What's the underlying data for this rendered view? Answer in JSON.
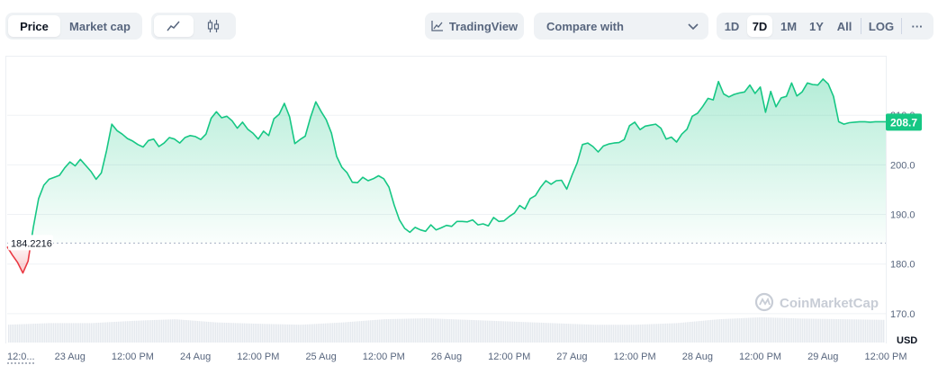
{
  "toolbar": {
    "view_tabs": [
      {
        "label": "Price",
        "active": true
      },
      {
        "label": "Market cap",
        "active": false
      }
    ],
    "chart_type_icons": [
      "line-chart-icon",
      "candlestick-icon"
    ],
    "tradingview_label": "TradingView",
    "compare_placeholder": "Compare with",
    "range_tabs": [
      {
        "label": "1D",
        "active": false
      },
      {
        "label": "7D",
        "active": true
      },
      {
        "label": "1M",
        "active": false
      },
      {
        "label": "1Y",
        "active": false
      },
      {
        "label": "All",
        "active": false
      },
      {
        "label": "LOG",
        "active": false
      }
    ],
    "more_label": "···"
  },
  "colors": {
    "up": "#16c784",
    "down": "#ea3943",
    "grid": "#eff2f5",
    "axis_text": "#58667e",
    "watermark": "#c8cdd6"
  },
  "watermark": "CoinMarketCap",
  "chart_data": {
    "type": "area",
    "currency": "USD",
    "open_price_label": "184.2216",
    "open_price": 184.2216,
    "last_price_label": "208.7",
    "last_price": 208.7,
    "ylim": [
      164,
      222
    ],
    "yticks": [
      {
        "value": 210,
        "label": "210.0"
      },
      {
        "value": 200,
        "label": "200.0"
      },
      {
        "value": 190,
        "label": "190.0"
      },
      {
        "value": 180,
        "label": "180.0"
      },
      {
        "value": 170,
        "label": "170.0"
      }
    ],
    "xlim": [
      0,
      168
    ],
    "xticks": [
      {
        "t": 0,
        "label": "12:0..."
      },
      {
        "t": 12,
        "label": "23 Aug"
      },
      {
        "t": 24,
        "label": "12:00 PM"
      },
      {
        "t": 36,
        "label": "24 Aug"
      },
      {
        "t": 48,
        "label": "12:00 PM"
      },
      {
        "t": 60,
        "label": "25 Aug"
      },
      {
        "t": 72,
        "label": "12:00 PM"
      },
      {
        "t": 84,
        "label": "26 Aug"
      },
      {
        "t": 96,
        "label": "12:00 PM"
      },
      {
        "t": 108,
        "label": "27 Aug"
      },
      {
        "t": 120,
        "label": "12:00 PM"
      },
      {
        "t": 132,
        "label": "28 Aug"
      },
      {
        "t": 144,
        "label": "12:00 PM"
      },
      {
        "t": 156,
        "label": "29 Aug"
      },
      {
        "t": 168,
        "label": "12:00 PM"
      }
    ],
    "series": [
      {
        "t": [
          0,
          1,
          2,
          3,
          4,
          5,
          6,
          7,
          8,
          9,
          10,
          11,
          12,
          13,
          14,
          15,
          16,
          17,
          18,
          19,
          20,
          21,
          22,
          23,
          24,
          25,
          26,
          27,
          28,
          29,
          30,
          31,
          32,
          33,
          34,
          35,
          36,
          37,
          38,
          39,
          40,
          41,
          42,
          43,
          44,
          45,
          46,
          47,
          48,
          49,
          50,
          51,
          52,
          53,
          54,
          55,
          56,
          57,
          58,
          59,
          60,
          61,
          62,
          63,
          64,
          65,
          66,
          67,
          68,
          69,
          70,
          71,
          72,
          73,
          74,
          75,
          76,
          77,
          78,
          79,
          80,
          81,
          82,
          83,
          84,
          85,
          86,
          87,
          88,
          89,
          90,
          91,
          92,
          93,
          94,
          95,
          96,
          97,
          98,
          99,
          100,
          101,
          102,
          103,
          104,
          105,
          106,
          107,
          108,
          109,
          110,
          111,
          112,
          113,
          114,
          115,
          116,
          117,
          118,
          119,
          120,
          121,
          122,
          123,
          124,
          125,
          126,
          127,
          128,
          129,
          130,
          131,
          132,
          133,
          134,
          135,
          136,
          137,
          138,
          139,
          140,
          141,
          142,
          143,
          144,
          145,
          146,
          147,
          148,
          149,
          150,
          151,
          152,
          153,
          154,
          155,
          156,
          157,
          158,
          159,
          160,
          161,
          162,
          163,
          164,
          165,
          166,
          167,
          168
        ],
        "price": [
          183.5,
          181.8,
          180.3,
          178.2,
          180.6,
          187.4,
          193.2,
          195.9,
          197.1,
          197.5,
          197.9,
          199.4,
          200.6,
          199.8,
          201.1,
          199.9,
          198.7,
          197.1,
          198.4,
          202.9,
          208.2,
          206.9,
          206.2,
          205.3,
          204.8,
          204.1,
          203.6,
          204.9,
          205.2,
          203.7,
          204.4,
          205.5,
          205.2,
          204.4,
          205.5,
          205.9,
          205.7,
          205.1,
          206.2,
          209.4,
          210.7,
          209.5,
          209.8,
          208.9,
          207.4,
          208.6,
          207.2,
          206.4,
          205.2,
          206.8,
          205.9,
          209.3,
          210.2,
          212.4,
          209.7,
          204.3,
          205.1,
          205.8,
          209.6,
          212.7,
          210.8,
          209.1,
          206.4,
          201.7,
          199.5,
          198.4,
          196.5,
          196.4,
          197.5,
          196.8,
          197.2,
          197.8,
          197.2,
          195.5,
          191.9,
          188.9,
          187.2,
          186.4,
          187.4,
          186.9,
          186.6,
          187.9,
          186.9,
          187.3,
          187.8,
          187.6,
          188.6,
          188.6,
          188.5,
          188.9,
          187.9,
          188.1,
          187.7,
          189.4,
          188.6,
          188.7,
          189.6,
          190.3,
          191.8,
          191.1,
          193.2,
          193.8,
          195.5,
          196.8,
          196.1,
          196.8,
          196.9,
          195.1,
          197.9,
          200.4,
          204.1,
          204.4,
          203.7,
          202.6,
          203.8,
          204.2,
          204.4,
          204.5,
          205.1,
          207.9,
          208.6,
          207.1,
          207.8,
          208.0,
          208.2,
          207.4,
          205.2,
          205.6,
          204.6,
          206.2,
          207.2,
          209.8,
          210.4,
          211.8,
          213.4,
          213.1,
          216.8,
          214.3,
          213.7,
          214.2,
          214.5,
          214.7,
          216.1,
          214.4,
          215.7,
          210.6,
          214.8,
          211.7,
          213.5,
          213.8,
          216.5,
          213.9,
          214.7,
          216.5,
          216.2,
          216.1,
          217.3,
          216.3,
          213.8,
          208.7,
          208.2,
          208.5,
          208.6,
          208.7,
          208.7,
          208.6,
          208.7,
          208.7,
          208.7
        ]
      }
    ],
    "volume": {
      "t": [
        0,
        8,
        16,
        24,
        32,
        40,
        48,
        56,
        64,
        72,
        80,
        88,
        96,
        104,
        112,
        120,
        128,
        136,
        144,
        152,
        160,
        168
      ],
      "values": [
        0.55,
        0.6,
        0.6,
        0.67,
        0.72,
        0.62,
        0.58,
        0.55,
        0.62,
        0.72,
        0.75,
        0.7,
        0.65,
        0.6,
        0.55,
        0.55,
        0.6,
        0.72,
        0.78,
        0.74,
        0.72,
        0.7
      ]
    }
  }
}
